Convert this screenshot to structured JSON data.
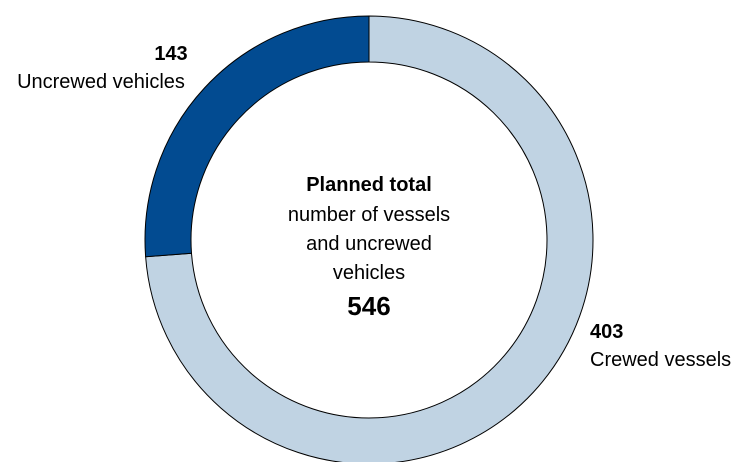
{
  "chart_data": {
    "type": "pie",
    "variant": "donut",
    "categories": [
      "Uncrewed vehicles",
      "Crewed vessels"
    ],
    "values": [
      143,
      403
    ],
    "colors": [
      "#024B91",
      "#C0D3E3"
    ],
    "legend": "none",
    "center": {
      "title": "Planned total",
      "lines": [
        "number of vessels",
        "and uncrewed",
        "vehicles"
      ],
      "total": "546"
    },
    "labels": [
      {
        "value": "143",
        "name": "Uncrewed vehicles"
      },
      {
        "value": "403",
        "name": "Crewed vessels"
      }
    ]
  }
}
